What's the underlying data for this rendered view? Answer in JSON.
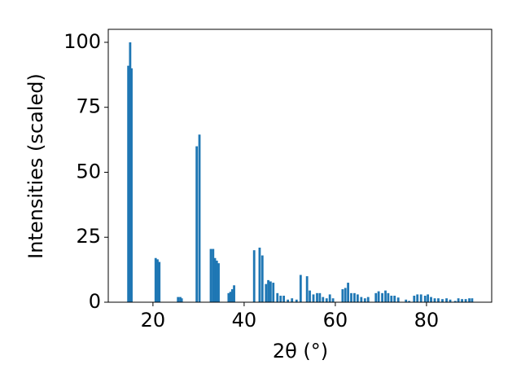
{
  "chart_data": {
    "type": "bar",
    "xlabel": "2θ (°)",
    "ylabel": "Intensities (scaled)",
    "color": "#1f77b4",
    "x": [
      14.6,
      15.0,
      15.3,
      20.6,
      21.0,
      21.4,
      25.5,
      26.0,
      26.3,
      29.6,
      30.2,
      32.7,
      33.2,
      33.6,
      34.0,
      34.4,
      36.6,
      37.0,
      37.4,
      37.8,
      42.2,
      43.4,
      44.0,
      44.8,
      45.3,
      45.8,
      46.4,
      47.3,
      48.0,
      48.7,
      49.6,
      50.5,
      51.5,
      52.4,
      53.8,
      54.4,
      55.2,
      56.0,
      56.6,
      57.3,
      58.1,
      58.8,
      59.5,
      61.6,
      62.2,
      62.8,
      63.5,
      64.2,
      64.9,
      65.7,
      66.5,
      67.2,
      68.9,
      69.5,
      70.3,
      71.0,
      71.6,
      72.3,
      73.0,
      73.8,
      75.5,
      76.2,
      77.3,
      78.0,
      78.8,
      79.7,
      80.3,
      81.0,
      81.8,
      82.6,
      83.5,
      84.4,
      85.2,
      86.3,
      87.0,
      87.8,
      88.6,
      89.4,
      90.0
    ],
    "values": [
      91,
      100,
      90,
      17,
      16.5,
      15.5,
      2,
      2,
      1.5,
      60,
      64.5,
      20.5,
      20.5,
      17,
      16,
      15,
      3.5,
      4,
      5,
      6.5,
      20,
      21,
      18,
      7,
      8.5,
      8,
      7.5,
      3.5,
      2.5,
      2.5,
      1,
      1.5,
      1,
      10.5,
      10,
      4.5,
      3,
      3.5,
      3.5,
      2,
      1.5,
      3,
      1.5,
      5,
      5.5,
      7.5,
      3.5,
      3.5,
      3,
      2,
      1.5,
      2,
      3.5,
      4.2,
      3.5,
      4.5,
      3.5,
      2.5,
      2.5,
      1.8,
      1,
      0.5,
      2.5,
      3,
      3,
      2.5,
      3,
      2,
      1.5,
      1.5,
      1.2,
      1.5,
      1,
      0.5,
      1.5,
      1.2,
      1.2,
      1.5,
      1.5
    ],
    "xlim": [
      10.2,
      94.3
    ],
    "ylim": [
      0,
      105
    ],
    "xticks": [
      20,
      40,
      60,
      80
    ],
    "yticks": [
      0,
      25,
      50,
      75,
      100
    ]
  }
}
